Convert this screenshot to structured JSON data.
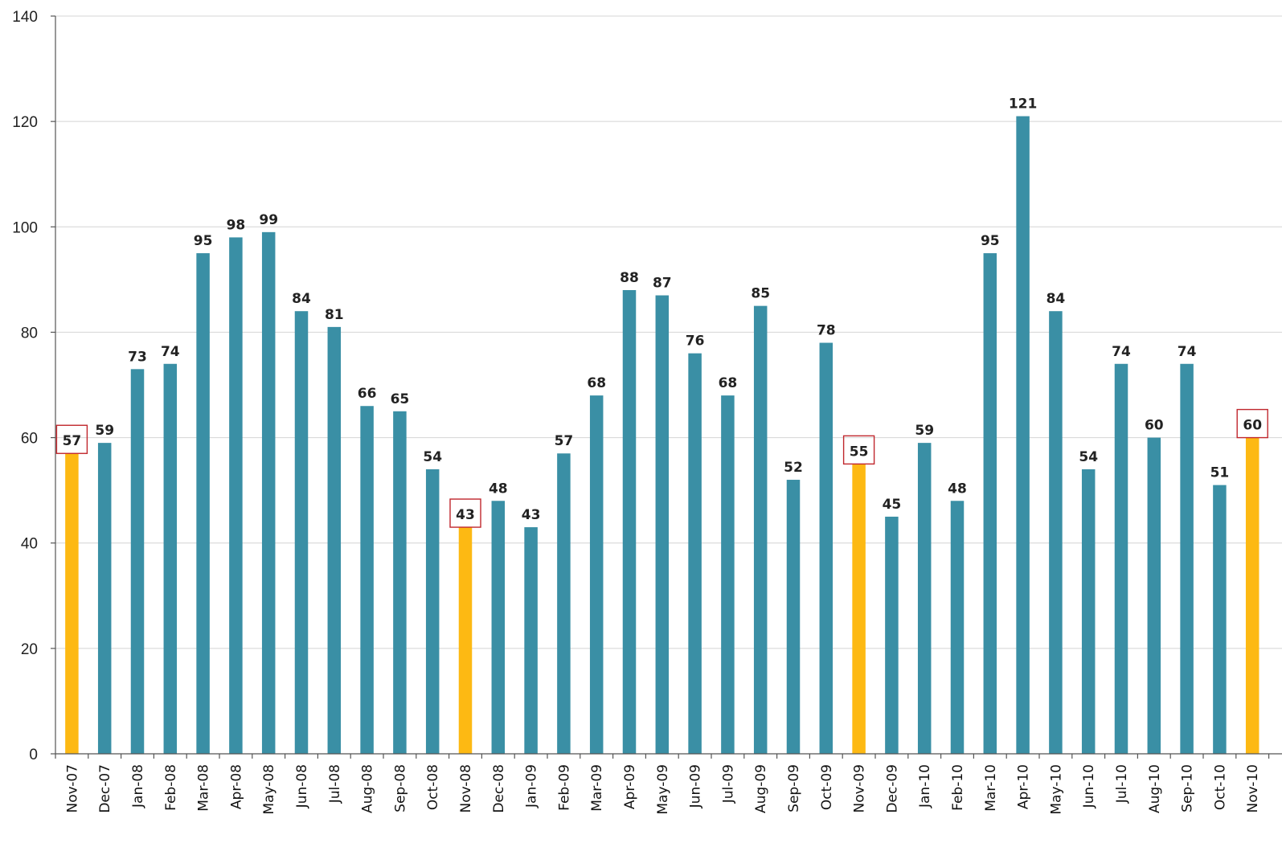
{
  "chart_data": {
    "type": "bar",
    "title": "",
    "xlabel": "",
    "ylabel": "",
    "ylim": [
      0,
      140
    ],
    "yticks": [
      0,
      20,
      40,
      60,
      80,
      100,
      120,
      140
    ],
    "grid": true,
    "legend": "none",
    "colors": {
      "normal": "#3a8fa5",
      "highlight": "#fdb913",
      "highlight_box": "#c0272d"
    },
    "categories": [
      "Nov-07",
      "Dec-07",
      "Jan-08",
      "Feb-08",
      "Mar-08",
      "Apr-08",
      "May-08",
      "Jun-08",
      "Jul-08",
      "Aug-08",
      "Sep-08",
      "Oct-08",
      "Nov-08",
      "Dec-08",
      "Jan-09",
      "Feb-09",
      "Mar-09",
      "Apr-09",
      "May-09",
      "Jun-09",
      "Jul-09",
      "Aug-09",
      "Sep-09",
      "Oct-09",
      "Nov-09",
      "Dec-09",
      "Jan-10",
      "Feb-10",
      "Mar-10",
      "Apr-10",
      "May-10",
      "Jun-10",
      "Jul-10",
      "Aug-10",
      "Sep-10",
      "Oct-10",
      "Nov-10"
    ],
    "values": [
      57,
      59,
      73,
      74,
      95,
      98,
      99,
      84,
      81,
      66,
      65,
      54,
      43,
      48,
      43,
      57,
      68,
      88,
      87,
      76,
      68,
      85,
      52,
      78,
      55,
      45,
      59,
      48,
      95,
      121,
      84,
      54,
      74,
      60,
      74,
      51,
      60
    ],
    "highlighted": [
      "Nov-07",
      "Nov-08",
      "Nov-09",
      "Nov-10"
    ]
  }
}
